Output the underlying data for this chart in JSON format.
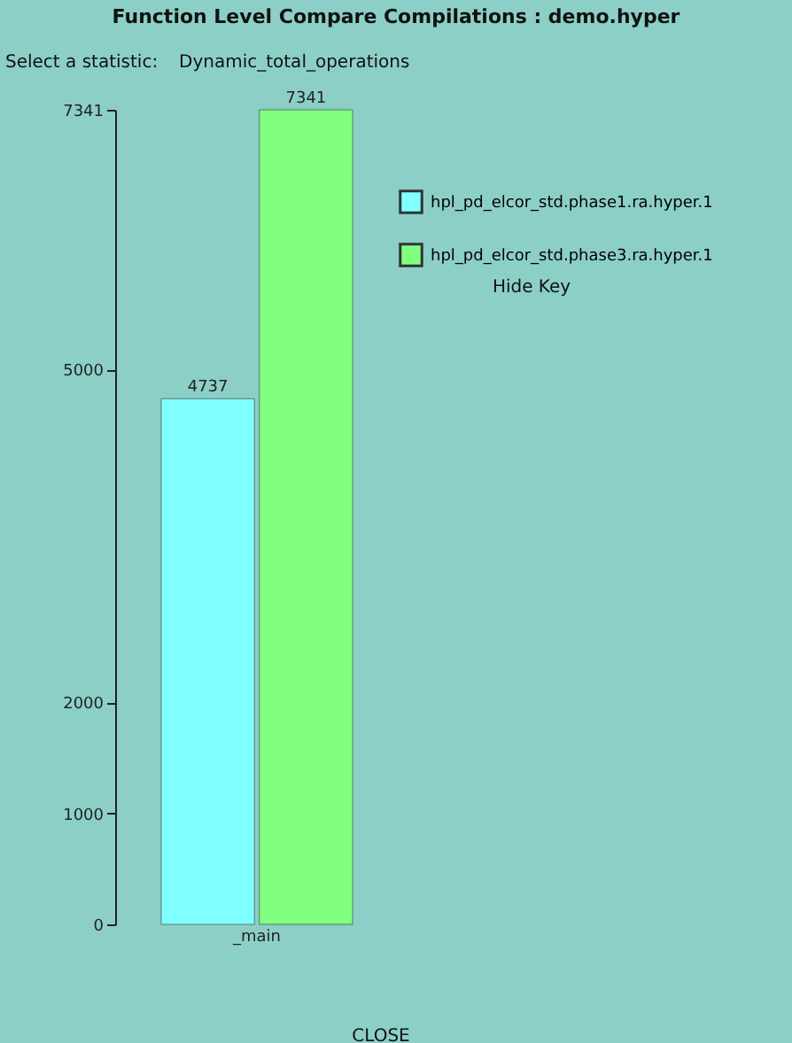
{
  "chart_data": {
    "type": "bar",
    "title": "Function Level Compare Compilations : demo.hyper",
    "categories": [
      "_main"
    ],
    "series": [
      {
        "name": "hpl_pd_elcor_std.phase1.ra.hyper.1",
        "color": "#80ffff",
        "values": [
          4737
        ]
      },
      {
        "name": "hpl_pd_elcor_std.phase3.ra.hyper.1",
        "color": "#80ff80",
        "values": [
          7341
        ]
      }
    ],
    "ylim": [
      0,
      7341
    ],
    "yticks": [
      0,
      1000,
      2000,
      5000,
      7341
    ],
    "data_labels": true,
    "grid": false,
    "legend": "top right",
    "annotations": [
      "Select a statistic:",
      "Dynamic_total_operations",
      "Hide Key",
      "CLOSE"
    ]
  }
}
